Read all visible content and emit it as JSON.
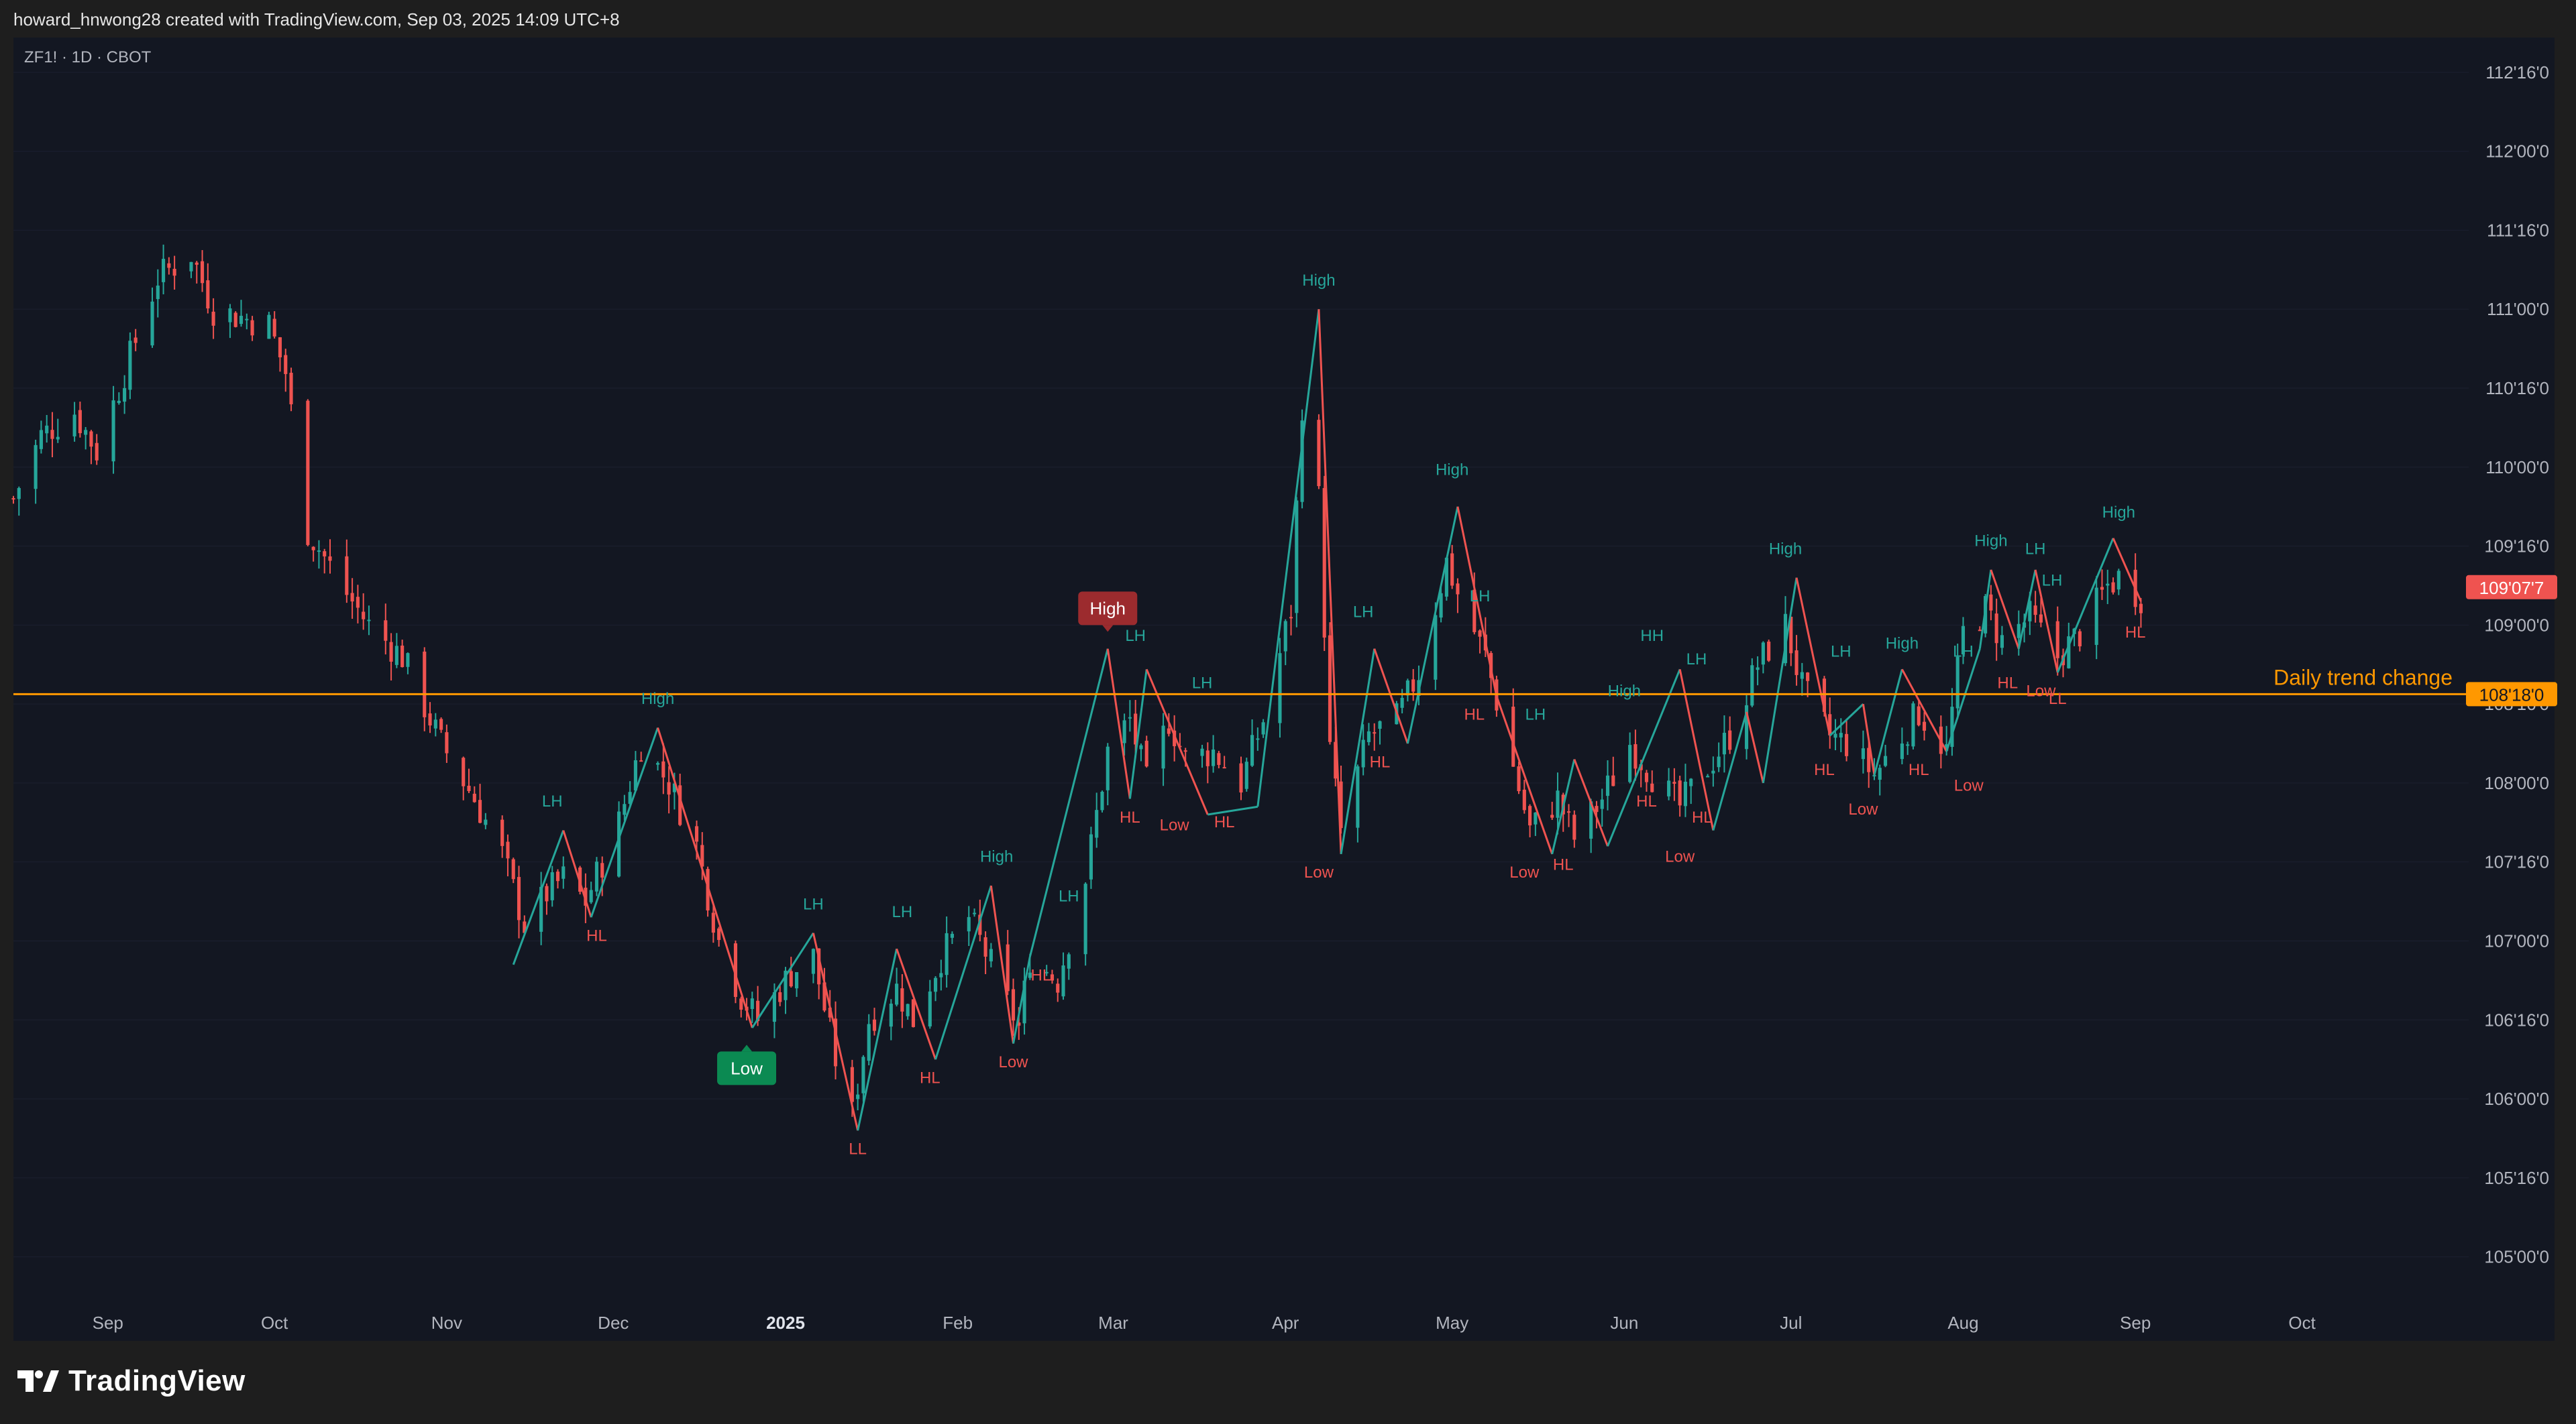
{
  "header": {
    "credit": "howard_hnwong28 created with TradingView.com, Sep 03, 2025 14:09 UTC+8"
  },
  "chart": {
    "symbol": "ZF1! · 1D · CBOT"
  },
  "footer": {
    "brand": "TradingView",
    "logo_icon": "tradingview-logo-icon"
  },
  "colors": {
    "up": "#26a69a",
    "down": "#ef5350",
    "trend_line": "#ff9800",
    "background": "#131722",
    "frame": "#1e1e1e"
  },
  "chart_data": {
    "type": "candlestick",
    "title": "ZF1! · 1D · CBOT",
    "y_range": [
      104.68,
      112.72
    ],
    "y_ticks": [
      {
        "v": 112.5,
        "label": "112'16'0"
      },
      {
        "v": 112.0,
        "label": "112'00'0"
      },
      {
        "v": 111.5,
        "label": "111'16'0"
      },
      {
        "v": 111.0,
        "label": "111'00'0"
      },
      {
        "v": 110.5,
        "label": "110'16'0"
      },
      {
        "v": 110.0,
        "label": "110'00'0"
      },
      {
        "v": 109.5,
        "label": "109'16'0"
      },
      {
        "v": 109.0,
        "label": "109'00'0"
      },
      {
        "v": 108.5,
        "label": "108'16'0"
      },
      {
        "v": 108.0,
        "label": "108'00'0"
      },
      {
        "v": 107.5,
        "label": "107'16'0"
      },
      {
        "v": 107.0,
        "label": "107'00'0"
      },
      {
        "v": 106.5,
        "label": "106'16'0"
      },
      {
        "v": 106.0,
        "label": "106'00'0"
      },
      {
        "v": 105.5,
        "label": "105'16'0"
      },
      {
        "v": 105.0,
        "label": "105'00'0"
      }
    ],
    "x_range": [
      "2024-08-15",
      "2025-10-31"
    ],
    "x_ticks": [
      {
        "date": "2024-09-01",
        "label": "Sep",
        "bold": false
      },
      {
        "date": "2024-10-01",
        "label": "Oct",
        "bold": false
      },
      {
        "date": "2024-11-01",
        "label": "Nov",
        "bold": false
      },
      {
        "date": "2024-12-01",
        "label": "Dec",
        "bold": false
      },
      {
        "date": "2025-01-01",
        "label": "2025",
        "bold": true
      },
      {
        "date": "2025-02-01",
        "label": "Feb",
        "bold": false
      },
      {
        "date": "2025-03-01",
        "label": "Mar",
        "bold": false
      },
      {
        "date": "2025-04-01",
        "label": "Apr",
        "bold": false
      },
      {
        "date": "2025-05-01",
        "label": "May",
        "bold": false
      },
      {
        "date": "2025-06-01",
        "label": "Jun",
        "bold": false
      },
      {
        "date": "2025-07-01",
        "label": "Jul",
        "bold": false
      },
      {
        "date": "2025-08-01",
        "label": "Aug",
        "bold": false
      },
      {
        "date": "2025-09-01",
        "label": "Sep",
        "bold": false
      },
      {
        "date": "2025-10-01",
        "label": "Oct",
        "bold": false
      }
    ],
    "price_path": [
      [
        "2024-08-15",
        109.8
      ],
      [
        "2024-08-20",
        110.2
      ],
      [
        "2024-08-26",
        110.35
      ],
      [
        "2024-08-30",
        110.1
      ],
      [
        "2024-09-05",
        110.7
      ],
      [
        "2024-09-10",
        111.2
      ],
      [
        "2024-09-16",
        111.35
      ],
      [
        "2024-09-20",
        111.0
      ],
      [
        "2024-09-25",
        110.95
      ],
      [
        "2024-09-30",
        110.9
      ],
      [
        "2024-10-03",
        110.6
      ],
      [
        "2024-10-07",
        109.6
      ],
      [
        "2024-10-14",
        109.2
      ],
      [
        "2024-10-18",
        109.0
      ],
      [
        "2024-10-24",
        108.8
      ],
      [
        "2024-10-31",
        108.25
      ],
      [
        "2024-11-06",
        107.9
      ],
      [
        "2024-11-11",
        107.55
      ],
      [
        "2024-11-15",
        107.1
      ],
      [
        "2024-11-19",
        107.3
      ],
      [
        "2024-11-22",
        107.4
      ],
      [
        "2024-11-26",
        107.25
      ],
      [
        "2024-12-02",
        107.75
      ],
      [
        "2024-12-06",
        108.25
      ],
      [
        "2024-12-11",
        108.0
      ],
      [
        "2024-12-16",
        107.6
      ],
      [
        "2024-12-20",
        107.0
      ],
      [
        "2024-12-24",
        106.65
      ],
      [
        "2024-12-27",
        106.5
      ],
      [
        "2025-01-02",
        106.8
      ],
      [
        "2025-01-06",
        106.9
      ],
      [
        "2025-01-10",
        106.25
      ],
      [
        "2025-01-13",
        105.9
      ],
      [
        "2025-01-16",
        106.5
      ],
      [
        "2025-01-21",
        106.7
      ],
      [
        "2025-01-24",
        106.5
      ],
      [
        "2025-01-29",
        106.9
      ],
      [
        "2025-02-03",
        107.15
      ],
      [
        "2025-02-07",
        106.85
      ],
      [
        "2025-02-12",
        106.45
      ],
      [
        "2025-02-14",
        106.9
      ],
      [
        "2025-02-19",
        106.75
      ],
      [
        "2025-02-24",
        107.4
      ],
      [
        "2025-02-28",
        108.2
      ],
      [
        "2025-03-04",
        108.4
      ],
      [
        "2025-03-07",
        108.0
      ],
      [
        "2025-03-11",
        108.4
      ],
      [
        "2025-03-14",
        108.15
      ],
      [
        "2025-03-19",
        108.2
      ],
      [
        "2025-03-24",
        108.0
      ],
      [
        "2025-03-28",
        108.4
      ],
      [
        "2025-04-02",
        109.1
      ],
      [
        "2025-04-04",
        110.4
      ],
      [
        "2025-04-07",
        109.8
      ],
      [
        "2025-04-09",
        108.2
      ],
      [
        "2025-04-11",
        107.7
      ],
      [
        "2025-04-16",
        108.3
      ],
      [
        "2025-04-21",
        108.4
      ],
      [
        "2025-04-25",
        108.7
      ],
      [
        "2025-04-30",
        109.4
      ],
      [
        "2025-05-02",
        109.2
      ],
      [
        "2025-05-07",
        108.8
      ],
      [
        "2025-05-12",
        108.1
      ],
      [
        "2025-05-15",
        107.7
      ],
      [
        "2025-05-20",
        107.9
      ],
      [
        "2025-05-23",
        107.65
      ],
      [
        "2025-05-28",
        107.9
      ],
      [
        "2025-06-02",
        108.25
      ],
      [
        "2025-06-06",
        108.05
      ],
      [
        "2025-06-11",
        107.85
      ],
      [
        "2025-06-16",
        108.1
      ],
      [
        "2025-06-20",
        108.3
      ],
      [
        "2025-06-25",
        108.75
      ],
      [
        "2025-06-30",
        109.0
      ],
      [
        "2025-07-03",
        108.6
      ],
      [
        "2025-07-08",
        108.3
      ],
      [
        "2025-07-11",
        108.25
      ],
      [
        "2025-07-16",
        108.05
      ],
      [
        "2025-07-21",
        108.3
      ],
      [
        "2025-07-24",
        108.45
      ],
      [
        "2025-07-29",
        108.2
      ],
      [
        "2025-08-01",
        108.95
      ],
      [
        "2025-08-05",
        109.1
      ],
      [
        "2025-08-08",
        108.9
      ],
      [
        "2025-08-13",
        109.05
      ],
      [
        "2025-08-18",
        108.8
      ],
      [
        "2025-08-22",
        108.95
      ],
      [
        "2025-08-27",
        109.25
      ],
      [
        "2025-08-29",
        109.3
      ],
      [
        "2025-09-02",
        109.18
      ]
    ],
    "zigzag": [
      {
        "date": "2024-11-13",
        "price": 106.85
      },
      {
        "date": "2024-11-22",
        "price": 107.7
      },
      {
        "date": "2024-11-27",
        "price": 107.15
      },
      {
        "date": "2024-12-09",
        "price": 108.35
      },
      {
        "date": "2024-12-26",
        "price": 106.45
      },
      {
        "date": "2025-01-06",
        "price": 107.05
      },
      {
        "date": "2025-01-14",
        "price": 105.8
      },
      {
        "date": "2025-01-21",
        "price": 106.95
      },
      {
        "date": "2025-01-28",
        "price": 106.25
      },
      {
        "date": "2025-02-07",
        "price": 107.35
      },
      {
        "date": "2025-02-11",
        "price": 106.35
      },
      {
        "date": "2025-02-14",
        "price": 106.9
      },
      {
        "date": "2025-02-28",
        "price": 108.85
      },
      {
        "date": "2025-03-04",
        "price": 107.9
      },
      {
        "date": "2025-03-07",
        "price": 108.72
      },
      {
        "date": "2025-03-18",
        "price": 107.8
      },
      {
        "date": "2025-03-27",
        "price": 107.85
      },
      {
        "date": "2025-04-07",
        "price": 111.0
      },
      {
        "date": "2025-04-11",
        "price": 107.55
      },
      {
        "date": "2025-04-17",
        "price": 108.85
      },
      {
        "date": "2025-04-23",
        "price": 108.25
      },
      {
        "date": "2025-05-02",
        "price": 109.75
      },
      {
        "date": "2025-05-09",
        "price": 108.55
      },
      {
        "date": "2025-05-19",
        "price": 107.55
      },
      {
        "date": "2025-05-23",
        "price": 108.15
      },
      {
        "date": "2025-05-29",
        "price": 107.6
      },
      {
        "date": "2025-06-11",
        "price": 108.72
      },
      {
        "date": "2025-06-17",
        "price": 107.7
      },
      {
        "date": "2025-06-23",
        "price": 108.45
      },
      {
        "date": "2025-06-26",
        "price": 108.0
      },
      {
        "date": "2025-07-02",
        "price": 109.3
      },
      {
        "date": "2025-07-08",
        "price": 108.3
      },
      {
        "date": "2025-07-14",
        "price": 108.5
      },
      {
        "date": "2025-07-16",
        "price": 108.05
      },
      {
        "date": "2025-07-21",
        "price": 108.72
      },
      {
        "date": "2025-07-29",
        "price": 108.2
      },
      {
        "date": "2025-08-04",
        "price": 108.85
      },
      {
        "date": "2025-08-06",
        "price": 109.35
      },
      {
        "date": "2025-08-11",
        "price": 108.85
      },
      {
        "date": "2025-08-14",
        "price": 109.35
      },
      {
        "date": "2025-08-18",
        "price": 108.7
      },
      {
        "date": "2025-08-28",
        "price": 109.55
      },
      {
        "date": "2025-09-02",
        "price": 109.15
      }
    ],
    "trend_line": {
      "price": 108.5625,
      "label": "Daily trend change",
      "price_label": "108'18'0"
    },
    "last_price": {
      "price": 109.24,
      "label": "109'07'7"
    },
    "pivot_labels": [
      {
        "date": "2024-11-20",
        "price": 107.85,
        "text": "LH",
        "kind": "high"
      },
      {
        "date": "2024-11-28",
        "price": 107.0,
        "text": "HL",
        "kind": "low"
      },
      {
        "date": "2024-12-09",
        "price": 108.5,
        "text": "High",
        "kind": "high"
      },
      {
        "date": "2024-12-25",
        "price": 106.3,
        "text": "Low",
        "kind": "low-box"
      },
      {
        "date": "2025-01-06",
        "price": 107.2,
        "text": "LH",
        "kind": "high"
      },
      {
        "date": "2025-01-14",
        "price": 105.65,
        "text": "LL",
        "kind": "low"
      },
      {
        "date": "2025-01-22",
        "price": 107.15,
        "text": "LH",
        "kind": "high"
      },
      {
        "date": "2025-01-27",
        "price": 106.1,
        "text": "HL",
        "kind": "low"
      },
      {
        "date": "2025-02-08",
        "price": 107.5,
        "text": "High",
        "kind": "high"
      },
      {
        "date": "2025-02-11",
        "price": 106.2,
        "text": "Low",
        "kind": "low"
      },
      {
        "date": "2025-02-16",
        "price": 106.75,
        "text": "HL",
        "kind": "low"
      },
      {
        "date": "2025-02-21",
        "price": 107.25,
        "text": "LH",
        "kind": "high"
      },
      {
        "date": "2025-02-28",
        "price": 109.0,
        "text": "High",
        "kind": "high-box"
      },
      {
        "date": "2025-03-04",
        "price": 107.75,
        "text": "HL",
        "kind": "low"
      },
      {
        "date": "2025-03-05",
        "price": 108.9,
        "text": "LH",
        "kind": "high"
      },
      {
        "date": "2025-03-12",
        "price": 107.7,
        "text": "Low",
        "kind": "low"
      },
      {
        "date": "2025-03-17",
        "price": 108.6,
        "text": "LH",
        "kind": "high"
      },
      {
        "date": "2025-03-21",
        "price": 107.72,
        "text": "HL",
        "kind": "low"
      },
      {
        "date": "2025-04-07",
        "price": 111.15,
        "text": "High",
        "kind": "high"
      },
      {
        "date": "2025-04-07",
        "price": 107.4,
        "text": "Low",
        "kind": "low"
      },
      {
        "date": "2025-04-15",
        "price": 109.05,
        "text": "LH",
        "kind": "high"
      },
      {
        "date": "2025-04-18",
        "price": 108.1,
        "text": "HL",
        "kind": "low"
      },
      {
        "date": "2025-05-01",
        "price": 109.95,
        "text": "High",
        "kind": "high"
      },
      {
        "date": "2025-05-05",
        "price": 108.4,
        "text": "HL",
        "kind": "low"
      },
      {
        "date": "2025-05-06",
        "price": 109.15,
        "text": "LH",
        "kind": "high"
      },
      {
        "date": "2025-05-14",
        "price": 107.4,
        "text": "Low",
        "kind": "low"
      },
      {
        "date": "2025-05-16",
        "price": 108.4,
        "text": "LH",
        "kind": "high"
      },
      {
        "date": "2025-05-21",
        "price": 107.45,
        "text": "HL",
        "kind": "low"
      },
      {
        "date": "2025-06-01",
        "price": 108.55,
        "text": "High",
        "kind": "high"
      },
      {
        "date": "2025-06-05",
        "price": 107.85,
        "text": "HL",
        "kind": "low"
      },
      {
        "date": "2025-06-06",
        "price": 108.9,
        "text": "HH",
        "kind": "high"
      },
      {
        "date": "2025-06-11",
        "price": 107.5,
        "text": "Low",
        "kind": "low"
      },
      {
        "date": "2025-06-14",
        "price": 108.75,
        "text": "LH",
        "kind": "high"
      },
      {
        "date": "2025-06-15",
        "price": 107.75,
        "text": "HL",
        "kind": "low"
      },
      {
        "date": "2025-06-30",
        "price": 109.45,
        "text": "High",
        "kind": "high"
      },
      {
        "date": "2025-07-07",
        "price": 108.05,
        "text": "HL",
        "kind": "low"
      },
      {
        "date": "2025-07-10",
        "price": 108.8,
        "text": "LH",
        "kind": "high"
      },
      {
        "date": "2025-07-14",
        "price": 107.8,
        "text": "Low",
        "kind": "low"
      },
      {
        "date": "2025-07-21",
        "price": 108.85,
        "text": "High",
        "kind": "high"
      },
      {
        "date": "2025-07-24",
        "price": 108.05,
        "text": "HL",
        "kind": "low"
      },
      {
        "date": "2025-08-01",
        "price": 108.8,
        "text": "LH",
        "kind": "high"
      },
      {
        "date": "2025-08-02",
        "price": 107.95,
        "text": "Low",
        "kind": "low"
      },
      {
        "date": "2025-08-06",
        "price": 109.5,
        "text": "High",
        "kind": "high"
      },
      {
        "date": "2025-08-09",
        "price": 108.6,
        "text": "HL",
        "kind": "low"
      },
      {
        "date": "2025-08-14",
        "price": 109.45,
        "text": "LH",
        "kind": "high"
      },
      {
        "date": "2025-08-15",
        "price": 108.55,
        "text": "Low",
        "kind": "low"
      },
      {
        "date": "2025-08-17",
        "price": 109.25,
        "text": "LH",
        "kind": "high"
      },
      {
        "date": "2025-08-18",
        "price": 108.5,
        "text": "LL",
        "kind": "low"
      },
      {
        "date": "2025-08-29",
        "price": 109.68,
        "text": "High",
        "kind": "high"
      },
      {
        "date": "2025-09-01",
        "price": 108.92,
        "text": "HL",
        "kind": "low"
      }
    ]
  }
}
